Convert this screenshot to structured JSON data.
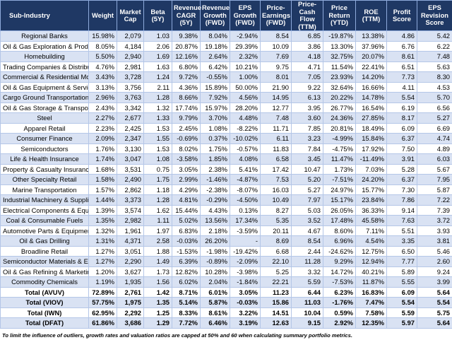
{
  "table": {
    "headers": [
      "Sub-Industry",
      "Weight",
      "Market Cap",
      "Beta (5Y)",
      "Revenue CAGR (5Y)",
      "Revenue Growth (FWD)",
      "EPS Growth (FWD)",
      "Price-Earnings (FWD)",
      "Price-Cash Flow (TTM)",
      "Price Return (YTD)",
      "ROE (TTM)",
      "Profit Score",
      "EPS Revision Score"
    ],
    "rows": [
      [
        "Regional Banks",
        "15.98%",
        "2,079",
        "1.03",
        "9.38%",
        "8.04%",
        "-2.94%",
        "8.54",
        "6.85",
        "-19.87%",
        "13.38%",
        "4.86",
        "5.42"
      ],
      [
        "Oil & Gas Exploration & Production",
        "8.05%",
        "4,184",
        "2.06",
        "20.87%",
        "19.18%",
        "29.39%",
        "10.09",
        "3.86",
        "13.30%",
        "37.96%",
        "6.76",
        "6.22"
      ],
      [
        "Homebuilding",
        "5.50%",
        "2,940",
        "1.69",
        "12.16%",
        "2.64%",
        "2.32%",
        "7.69",
        "4.18",
        "32.75%",
        "20.07%",
        "8.61",
        "7.48"
      ],
      [
        "Trading Companies & Distributors",
        "4.76%",
        "2,981",
        "1.63",
        "6.80%",
        "6.42%",
        "10.21%",
        "9.75",
        "4.71",
        "11.54%",
        "22.41%",
        "6.51",
        "5.63"
      ],
      [
        "Commercial & Residential Mortgage",
        "3.43%",
        "3,728",
        "1.24",
        "9.72%",
        "-0.55%",
        "1.00%",
        "8.01",
        "7.05",
        "23.93%",
        "14.20%",
        "7.73",
        "8.30"
      ],
      [
        "Oil & Gas Equipment & Services",
        "3.13%",
        "3,756",
        "2.11",
        "4.36%",
        "15.89%",
        "50.00%",
        "21.90",
        "9.22",
        "32.64%",
        "16.66%",
        "4.11",
        "4.53"
      ],
      [
        "Cargo Ground Transportation",
        "2.96%",
        "3,763",
        "1.28",
        "8.66%",
        "7.92%",
        "4.56%",
        "14.95",
        "6.13",
        "20.22%",
        "14.78%",
        "5.54",
        "5.70"
      ],
      [
        "Oil & Gas Storage & Transportation",
        "2.43%",
        "3,342",
        "1.32",
        "17.74%",
        "15.97%",
        "28.20%",
        "12.77",
        "3.95",
        "26.77%",
        "16.54%",
        "6.19",
        "6.56"
      ],
      [
        "Steel",
        "2.27%",
        "2,677",
        "1.33",
        "9.79%",
        "3.70%",
        "4.48%",
        "7.48",
        "3.60",
        "24.36%",
        "27.85%",
        "8.17",
        "5.27"
      ],
      [
        "Apparel Retail",
        "2.23%",
        "2,425",
        "1.53",
        "2.45%",
        "1.08%",
        "-8.22%",
        "11.71",
        "7.85",
        "20.81%",
        "18.49%",
        "6.09",
        "6.69"
      ],
      [
        "Consumer Finance",
        "2.09%",
        "2,347",
        "1.55",
        "-0.69%",
        "0.37%",
        "-10.02%",
        "6.11",
        "3.23",
        "-4.99%",
        "15.84%",
        "6.37",
        "4.74"
      ],
      [
        "Semiconductors",
        "1.76%",
        "3,130",
        "1.53",
        "8.02%",
        "1.75%",
        "-0.57%",
        "11.83",
        "7.84",
        "-4.75%",
        "17.92%",
        "7.50",
        "4.89"
      ],
      [
        "Life & Health Insurance",
        "1.74%",
        "3,047",
        "1.08",
        "-3.58%",
        "1.85%",
        "4.08%",
        "6.58",
        "3.45",
        "11.47%",
        "-11.49%",
        "3.91",
        "6.03"
      ],
      [
        "Property & Casualty Insurance",
        "1.68%",
        "3,531",
        "0.75",
        "3.05%",
        "2.38%",
        "5.41%",
        "17.42",
        "10.47",
        "1.73%",
        "7.03%",
        "5.28",
        "5.67"
      ],
      [
        "Other Specialty Retail",
        "1.58%",
        "2,490",
        "1.75",
        "2.99%",
        "-1.46%",
        "-4.87%",
        "7.53",
        "5.20",
        "-7.51%",
        "24.20%",
        "6.37",
        "7.95"
      ],
      [
        "Marine Transportation",
        "1.57%",
        "2,862",
        "1.18",
        "4.29%",
        "-2.38%",
        "-8.07%",
        "16.03",
        "5.27",
        "24.97%",
        "15.77%",
        "7.30",
        "5.87"
      ],
      [
        "Industrial Machinery & Supplies",
        "1.44%",
        "3,373",
        "1.28",
        "4.81%",
        "-0.29%",
        "-4.50%",
        "10.49",
        "7.97",
        "15.17%",
        "23.84%",
        "7.86",
        "7.22"
      ],
      [
        "Electrical Components & Equipment",
        "1.39%",
        "3,574",
        "1.62",
        "15.44%",
        "4.43%",
        "0.13%",
        "8.27",
        "5.03",
        "26.05%",
        "36.33%",
        "9.14",
        "7.39"
      ],
      [
        "Coal & Consumable Fuels",
        "1.35%",
        "2,982",
        "1.11",
        "5.02%",
        "13.56%",
        "17.34%",
        "5.35",
        "3.52",
        "17.48%",
        "45.58%",
        "7.63",
        "3.72"
      ],
      [
        "Automotive Parts & Equipment",
        "1.32%",
        "1,961",
        "1.97",
        "6.83%",
        "2.18%",
        "-3.59%",
        "20.11",
        "4.67",
        "8.60%",
        "7.11%",
        "5.51",
        "3.93"
      ],
      [
        "Oil & Gas Drilling",
        "1.31%",
        "4,371",
        "2.58",
        "-0.03%",
        "26.20%",
        "-",
        "8.69",
        "8.54",
        "6.96%",
        "4.54%",
        "3.35",
        "3.81"
      ],
      [
        "Broadline Retail",
        "1.27%",
        "3,051",
        "1.88",
        "-1.53%",
        "-1.98%",
        "-19.42%",
        "6.68",
        "2.44",
        "-24.62%",
        "12.75%",
        "6.50",
        "5.46"
      ],
      [
        "Semiconductor Materials & Equipment",
        "1.27%",
        "2,290",
        "1.49",
        "6.39%",
        "-0.89%",
        "-2.09%",
        "22.10",
        "11.28",
        "9.29%",
        "12.94%",
        "7.77",
        "2.60"
      ],
      [
        "Oil & Gas Refining & Marketing",
        "1.20%",
        "3,627",
        "1.73",
        "12.82%",
        "10.28%",
        "-3.98%",
        "5.25",
        "3.32",
        "14.72%",
        "40.21%",
        "5.89",
        "9.24"
      ],
      [
        "Commodity Chemicals",
        "1.19%",
        "1,935",
        "1.56",
        "6.02%",
        "2.04%",
        "-1.84%",
        "22.21",
        "5.59",
        "-7.53%",
        "11.87%",
        "5.55",
        "3.99"
      ]
    ],
    "totals": [
      [
        "Total (AVUV)",
        "72.89%",
        "2,761",
        "1.42",
        "8.71%",
        "6.01%",
        "3.05%",
        "11.23",
        "6.44",
        "6.23%",
        "16.83%",
        "6.09",
        "5.64"
      ],
      [
        "Total (VIOV)",
        "57.75%",
        "1,975",
        "1.35",
        "5.14%",
        "5.87%",
        "-0.03%",
        "15.86",
        "11.03",
        "-1.76%",
        "7.47%",
        "5.54",
        "5.54"
      ],
      [
        "Total (IWN)",
        "62.95%",
        "2,292",
        "1.25",
        "8.33%",
        "8.61%",
        "3.22%",
        "14.51",
        "10.04",
        "0.59%",
        "7.58%",
        "5.59",
        "5.75"
      ],
      [
        "Total (DFAT)",
        "61.86%",
        "3,686",
        "1.29",
        "7.72%",
        "6.46%",
        "3.19%",
        "12.63",
        "9.15",
        "2.92%",
        "12.35%",
        "5.97",
        "5.64"
      ]
    ]
  },
  "footnote": "To limit the influence of outliers, growth rates and valuation ratios are capped at 50% and 60 when calculating summary portfolio metrics."
}
